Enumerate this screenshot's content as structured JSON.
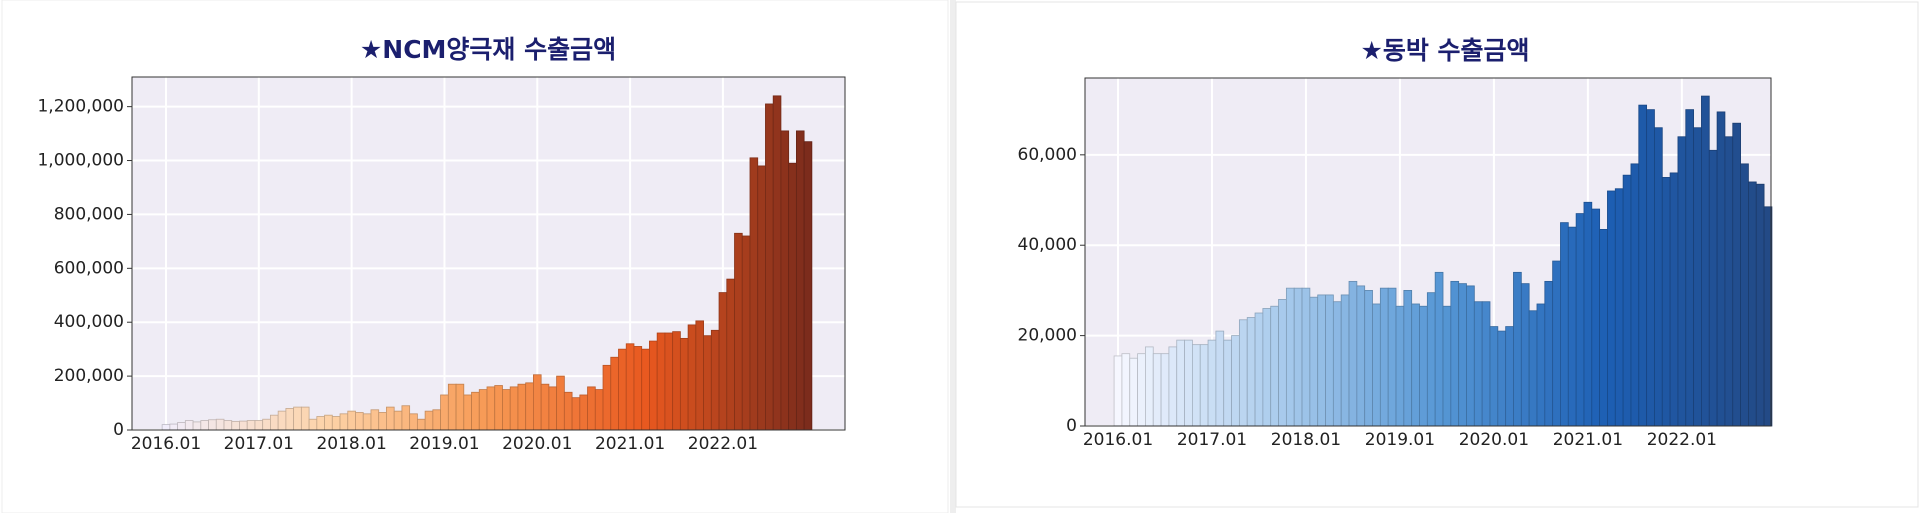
{
  "chart_data": [
    {
      "type": "bar",
      "title": "★NCM양극재 수출금액",
      "categories": [
        "2016.01",
        null,
        null,
        null,
        null,
        null,
        null,
        null,
        null,
        null,
        null,
        null,
        "2017.01",
        null,
        null,
        null,
        null,
        null,
        null,
        null,
        null,
        null,
        null,
        null,
        "2018.01",
        null,
        null,
        null,
        null,
        null,
        null,
        null,
        null,
        null,
        null,
        null,
        "2019.01",
        null,
        null,
        null,
        null,
        null,
        null,
        null,
        null,
        null,
        null,
        null,
        "2020.01",
        null,
        null,
        null,
        null,
        null,
        null,
        null,
        null,
        null,
        null,
        null,
        "2021.01",
        null,
        null,
        null,
        null,
        null,
        null,
        null,
        null,
        null,
        null,
        null,
        "2022.01",
        null,
        null,
        null,
        null,
        null,
        null,
        null,
        null,
        null,
        null,
        null
      ],
      "values": [
        20000,
        22000,
        28000,
        35000,
        30000,
        35000,
        38000,
        40000,
        35000,
        32000,
        33000,
        35000,
        35000,
        40000,
        55000,
        70000,
        80000,
        85000,
        85000,
        40000,
        50000,
        55000,
        50000,
        60000,
        70000,
        65000,
        60000,
        75000,
        65000,
        85000,
        70000,
        90000,
        60000,
        40000,
        70000,
        75000,
        130000,
        170000,
        170000,
        130000,
        140000,
        150000,
        160000,
        165000,
        150000,
        160000,
        170000,
        175000,
        205000,
        170000,
        160000,
        200000,
        140000,
        120000,
        130000,
        160000,
        150000,
        240000,
        270000,
        300000,
        320000,
        310000,
        300000,
        330000,
        360000,
        360000,
        365000,
        340000,
        390000,
        405000,
        350000,
        370000,
        510000,
        560000,
        730000,
        720000,
        1010000,
        980000,
        1210000,
        1240000,
        1110000,
        990000,
        1110000,
        1070000
      ],
      "color_stops": [
        "#f1edfb",
        "#fdd3a8",
        "#f79a55",
        "#e8581f",
        "#7c2c1c"
      ],
      "ylim": [
        0,
        1310000
      ],
      "yticks": [
        0,
        {
          "value": 200000,
          "label": "200,000"
        },
        {
          "value": 400000,
          "label": "400,000"
        },
        {
          "value": 600000,
          "label": "600,000"
        },
        {
          "value": 800000,
          "label": "800,000"
        },
        {
          "value": 1000000,
          "label": "1,000,000"
        },
        {
          "value": 1200000,
          "label": "1,200,000"
        }
      ],
      "grid": true
    },
    {
      "type": "bar",
      "title": "★동박 수출금액",
      "categories": [
        "2016.01",
        null,
        null,
        null,
        null,
        null,
        null,
        null,
        null,
        null,
        null,
        null,
        "2017.01",
        null,
        null,
        null,
        null,
        null,
        null,
        null,
        null,
        null,
        null,
        null,
        "2018.01",
        null,
        null,
        null,
        null,
        null,
        null,
        null,
        null,
        null,
        null,
        null,
        "2019.01",
        null,
        null,
        null,
        null,
        null,
        null,
        null,
        null,
        null,
        null,
        null,
        "2020.01",
        null,
        null,
        null,
        null,
        null,
        null,
        null,
        null,
        null,
        null,
        null,
        "2021.01",
        null,
        null,
        null,
        null,
        null,
        null,
        null,
        null,
        null,
        null,
        null,
        "2022.01",
        null,
        null,
        null,
        null,
        null,
        null,
        null,
        null,
        null,
        null,
        null
      ],
      "values": [
        15500,
        16000,
        15000,
        16000,
        17500,
        16000,
        16000,
        17500,
        19000,
        19000,
        18000,
        18000,
        19000,
        21000,
        19000,
        20000,
        23500,
        24000,
        25000,
        26000,
        26500,
        28000,
        30500,
        30500,
        30500,
        28500,
        29000,
        29000,
        27500,
        29000,
        32000,
        31000,
        30000,
        27000,
        30500,
        30500,
        26500,
        30000,
        27000,
        26500,
        29500,
        34000,
        26500,
        32000,
        31500,
        31000,
        27500,
        27500,
        22000,
        21000,
        22000,
        34000,
        31500,
        25500,
        27000,
        32000,
        36500,
        45000,
        44000,
        47000,
        49500,
        48000,
        43500,
        52000,
        52500,
        55500,
        58000,
        71000,
        70000,
        66000,
        55000,
        56000,
        64000,
        70000,
        66000,
        73000,
        61000,
        69500,
        64000,
        67000,
        58000,
        54000,
        53500,
        48500
      ],
      "color_stops": [
        "#f6f7ff",
        "#a9cbec",
        "#5596d4",
        "#1d5fb4",
        "#234a86"
      ],
      "ylim": [
        0,
        77000
      ],
      "yticks": [
        0,
        {
          "value": 20000,
          "label": "20,000"
        },
        {
          "value": 40000,
          "label": "40,000"
        },
        {
          "value": 60000,
          "label": "60,000"
        }
      ],
      "grid": true
    }
  ]
}
